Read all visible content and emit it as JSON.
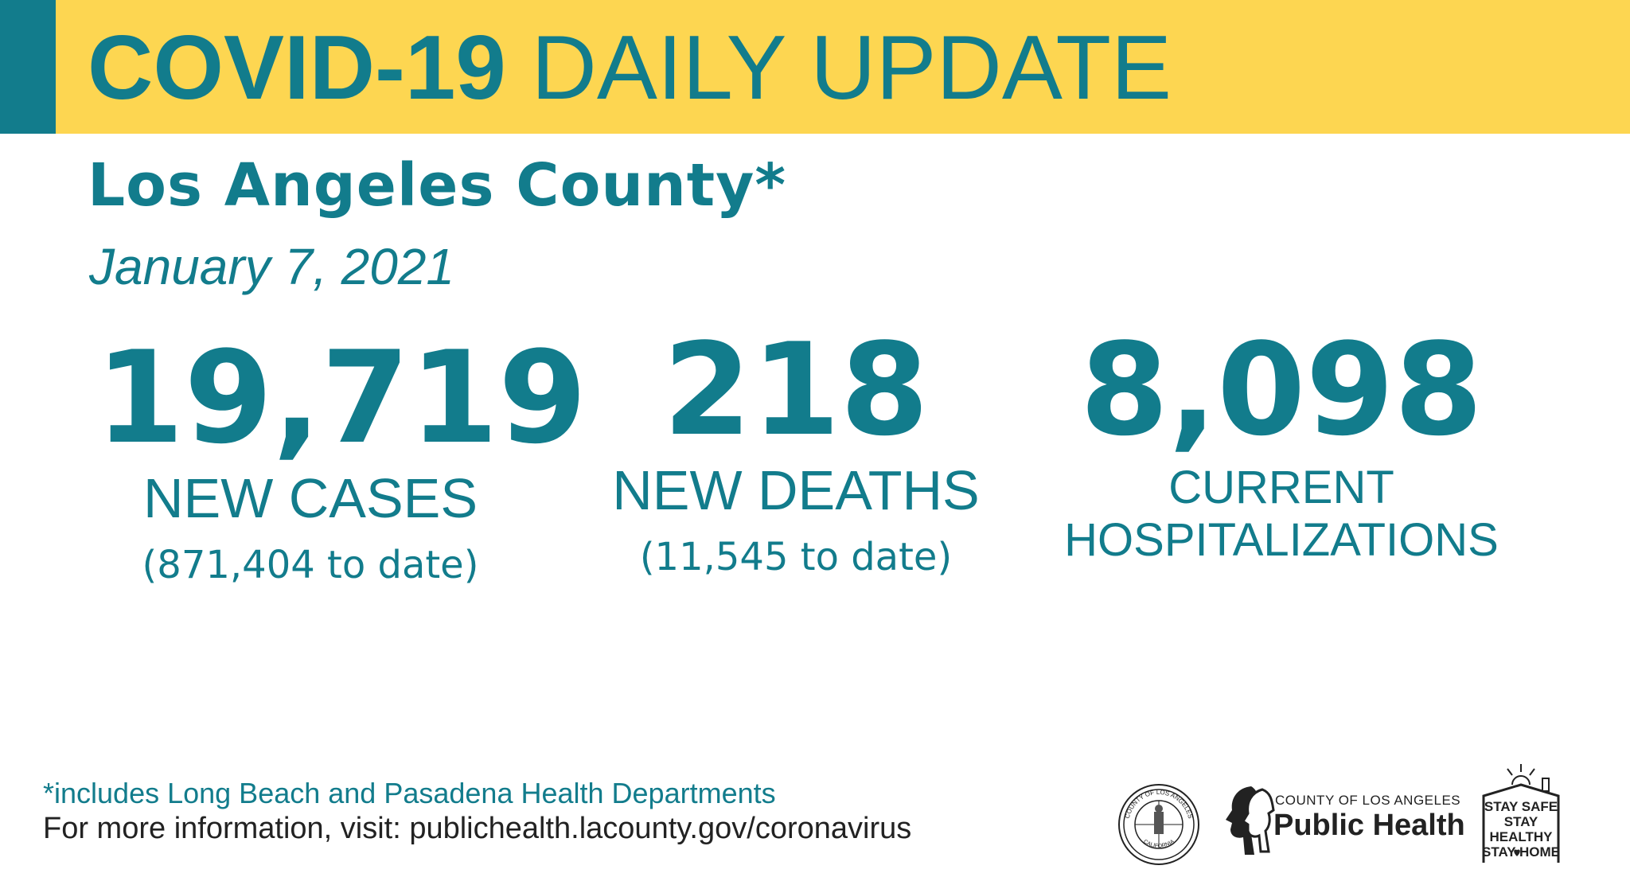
{
  "colors": {
    "teal": "#127c8c",
    "yellow": "#fdd651",
    "dark": "#222222"
  },
  "header": {
    "title_bold": "COVID-19",
    "title_regular": "DAILY UPDATE",
    "subtitle": "Los Angeles County*",
    "date": "January 7, 2021"
  },
  "stats": [
    {
      "value": "19,719",
      "label": "NEW CASES",
      "sub": "(871,404 to date)"
    },
    {
      "value": "218",
      "label": "NEW DEATHS",
      "sub": "(11,545 to date)"
    },
    {
      "value": "8,098",
      "label_line1": "CURRENT",
      "label_line2": "HOSPITALIZATIONS"
    }
  ],
  "footer": {
    "footnote": "*includes Long Beach and Pasadena Health Departments",
    "more_info": "For more information, visit: publichealth.lacounty.gov/coronavirus"
  },
  "logos": {
    "seal_text_top": "COUNTY OF LOS ANGELES",
    "seal_text_bottom": "CALIFORNIA",
    "ph_small": "COUNTY OF LOS ANGELES",
    "ph_big": "Public Health",
    "stay_line1": "STAY SAFE",
    "stay_line2": "STAY HEALTHY",
    "stay_line3": "STAY HOME"
  }
}
